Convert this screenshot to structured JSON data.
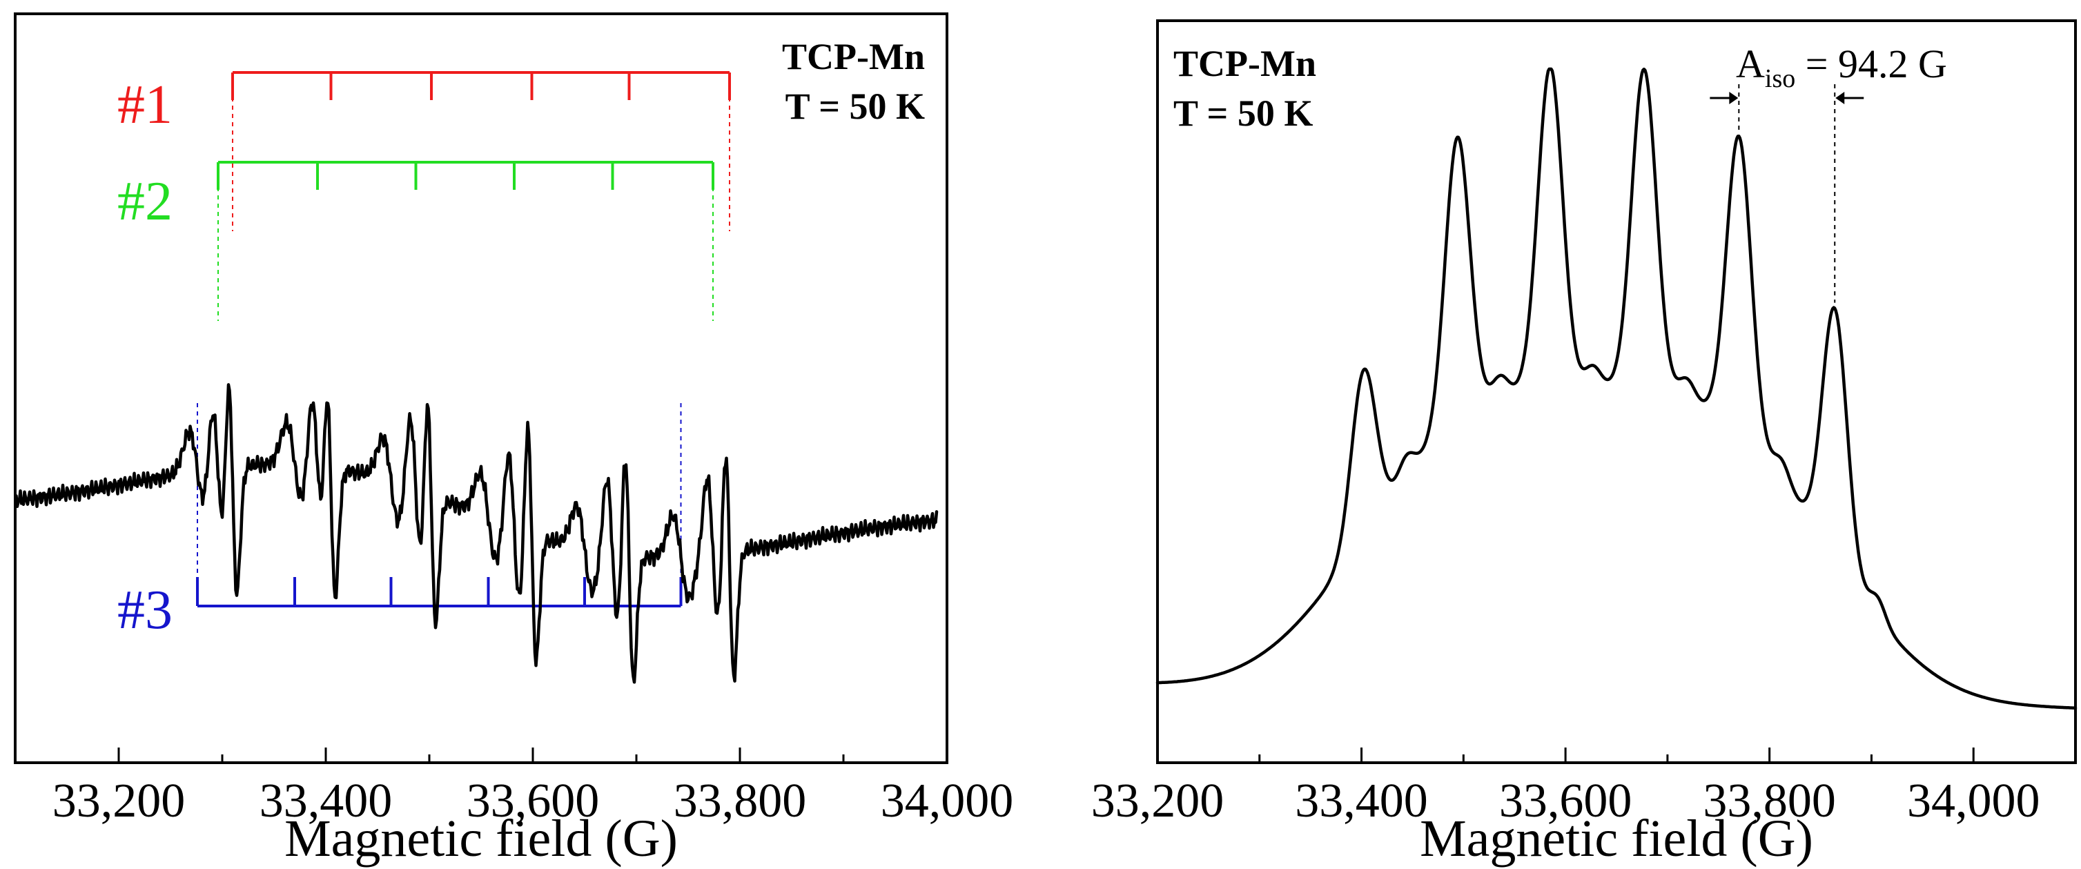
{
  "chart_data": [
    {
      "type": "line",
      "panel": "left",
      "xlim": [
        33100,
        34000
      ],
      "xticks": [
        33200,
        33400,
        33600,
        33800,
        34000
      ],
      "xtick_labels": [
        "33,200",
        "33,400",
        "33,600",
        "33,800",
        "34,000"
      ],
      "xlabel": "Magnetic field (G)",
      "ylabel": "",
      "annotation": [
        "TCP-Mn",
        "T = 50 K"
      ],
      "hyperfine_sets": [
        {
          "name": "#1",
          "color": "#ee1c1c",
          "positions": [
            33310,
            33405,
            33502,
            33599,
            33693,
            33790
          ]
        },
        {
          "name": "#2",
          "color": "#22dd22",
          "positions": [
            33296,
            33392,
            33487,
            33582,
            33677,
            33774
          ]
        },
        {
          "name": "#3",
          "color": "#1515cc",
          "positions": [
            33276,
            33370,
            33463,
            33557,
            33650,
            33743
          ]
        }
      ]
    },
    {
      "type": "line",
      "panel": "right",
      "xlim": [
        33200,
        34100
      ],
      "xticks": [
        33200,
        33400,
        33600,
        33800,
        34000
      ],
      "xtick_labels": [
        "33,200",
        "33,400",
        "33,600",
        "33,800",
        "34,000"
      ],
      "xlabel": "Magnetic field (G)",
      "ylabel": "",
      "annotation": [
        "TCP-Mn",
        "T = 50 K"
      ],
      "peak_positions": [
        33402,
        33494,
        33585,
        33677,
        33770,
        33864
      ],
      "A_iso": {
        "prefix": "A",
        "subscript": "iso",
        "text": " = 94.2 G",
        "value": 94.2,
        "unit": "G"
      }
    }
  ]
}
